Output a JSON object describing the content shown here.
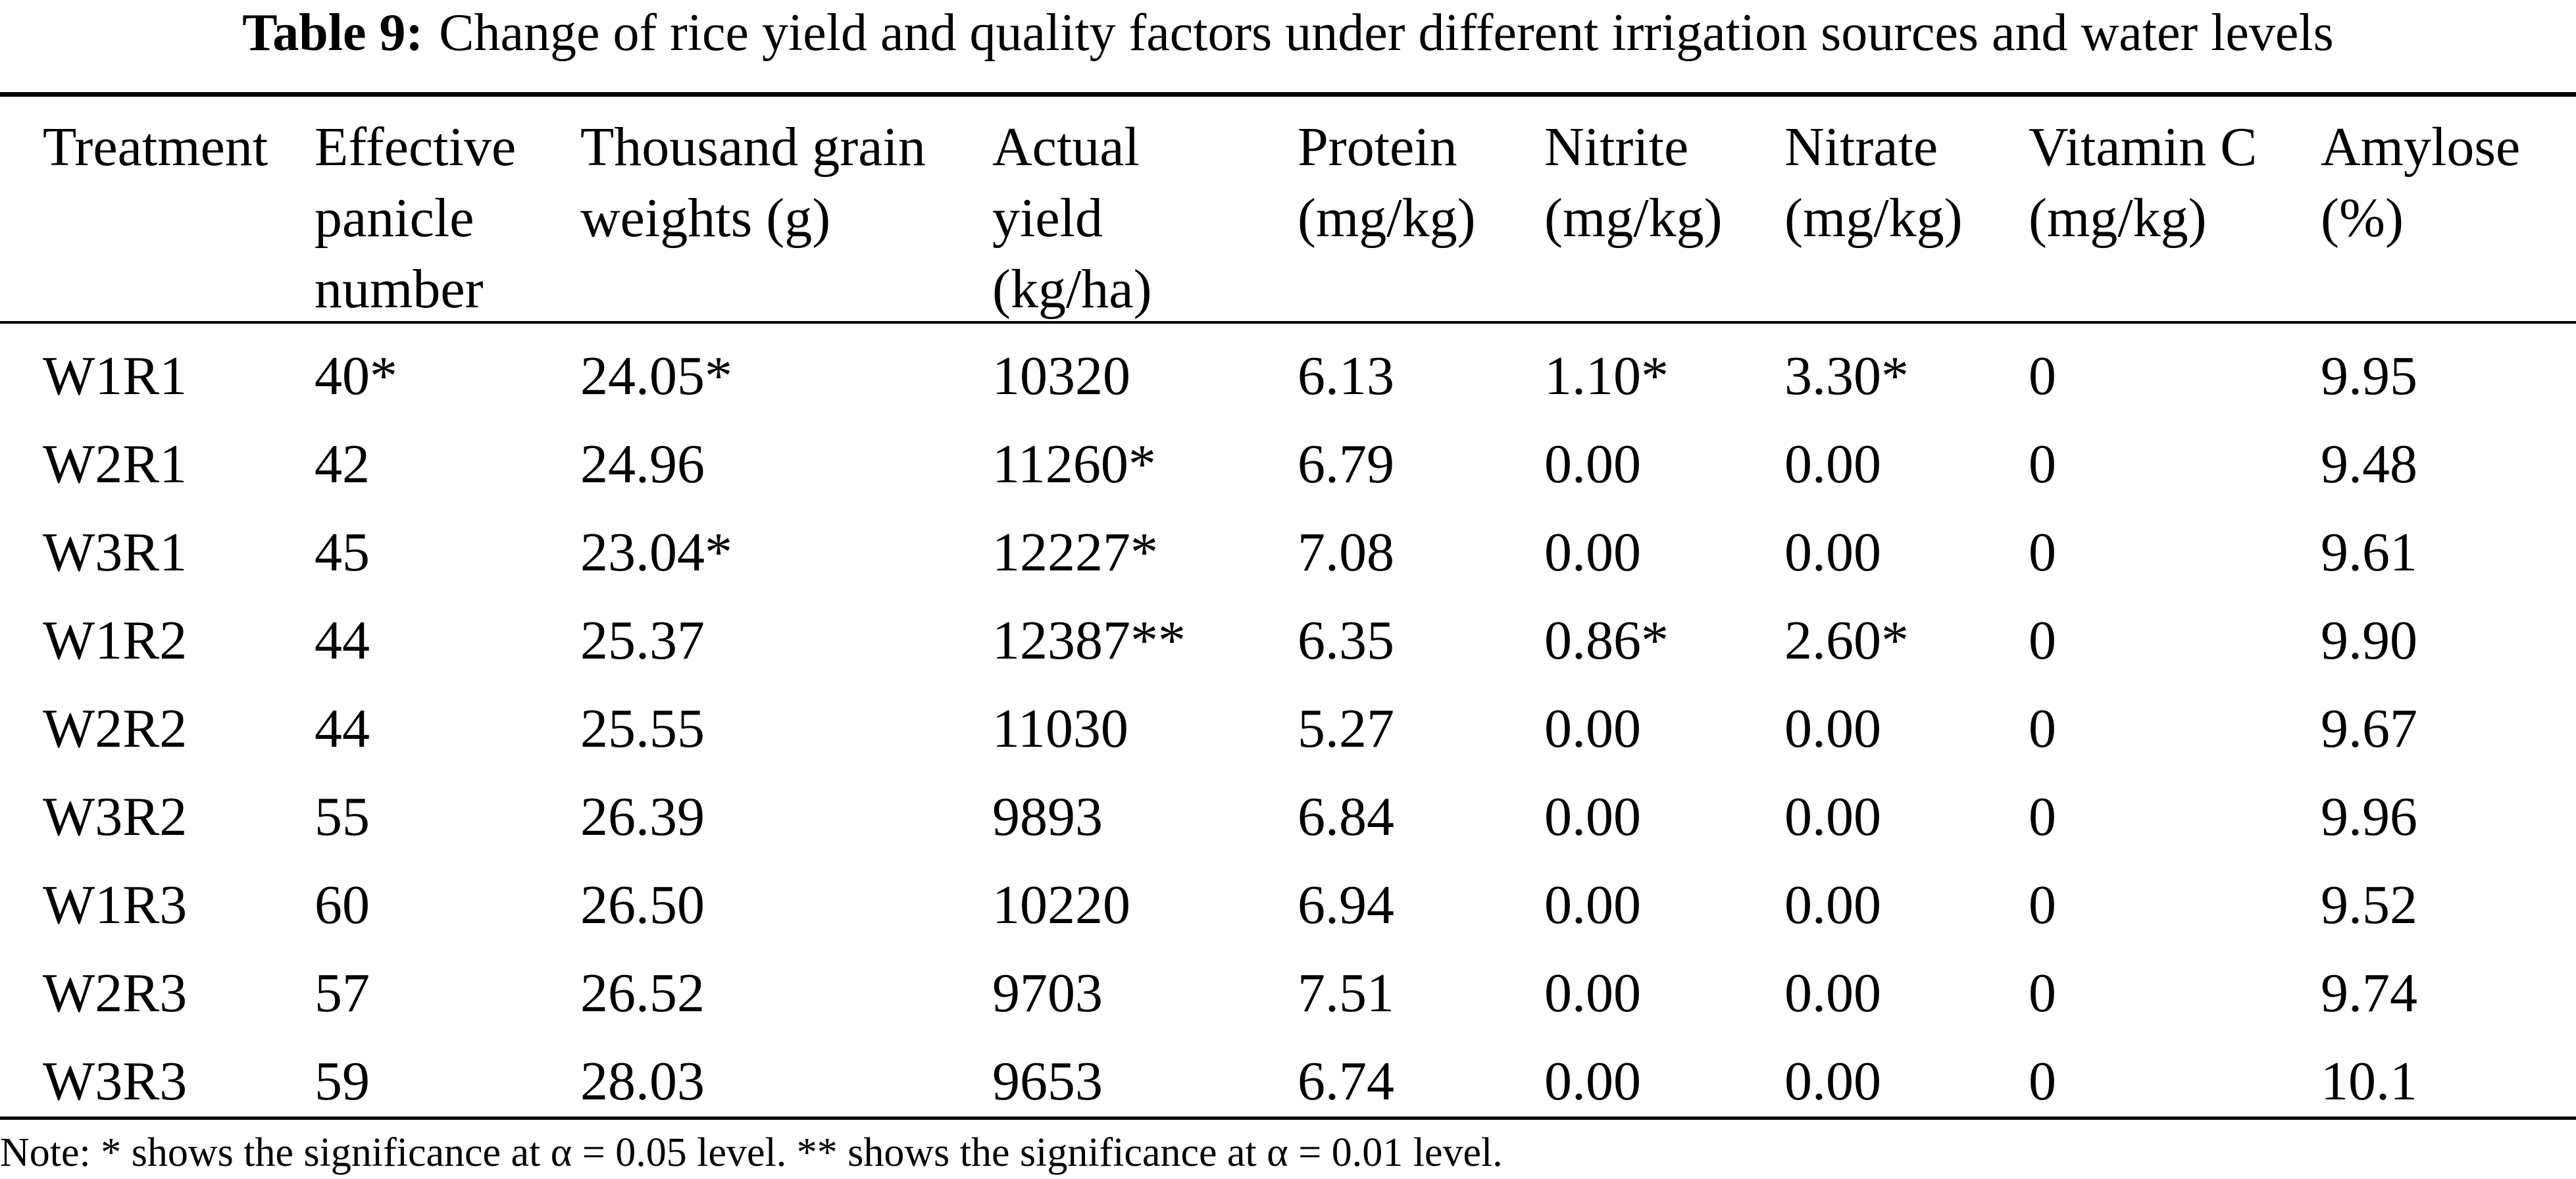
{
  "caption": {
    "label": "Table 9:",
    "text": "Change of rice yield and quality factors under different irrigation sources and water levels"
  },
  "table": {
    "headers": [
      "Treatment",
      "Effective\npanicle\nnumber",
      "Thousand grain\nweights (g)",
      "Actual\nyield\n(kg/ha)",
      "Protein\n(mg/kg)",
      "Nitrite\n(mg/kg)",
      "Nitrate\n(mg/kg)",
      "Vitamin C\n(mg/kg)",
      "Amylose\n(%)"
    ],
    "rows": [
      [
        "W1R1",
        "40*",
        "24.05*",
        "10320",
        "6.13",
        "1.10*",
        "3.30*",
        "0",
        "9.95"
      ],
      [
        "W2R1",
        "42",
        "24.96",
        "11260*",
        "6.79",
        "0.00",
        "0.00",
        "0",
        "9.48"
      ],
      [
        "W3R1",
        "45",
        "23.04*",
        "12227*",
        "7.08",
        "0.00",
        "0.00",
        "0",
        "9.61"
      ],
      [
        "W1R2",
        "44",
        "25.37",
        "12387**",
        "6.35",
        "0.86*",
        "2.60*",
        "0",
        "9.90"
      ],
      [
        "W2R2",
        "44",
        "25.55",
        "11030",
        "5.27",
        "0.00",
        "0.00",
        "0",
        "9.67"
      ],
      [
        "W3R2",
        "55",
        "26.39",
        "9893",
        "6.84",
        "0.00",
        "0.00",
        "0",
        "9.96"
      ],
      [
        "W1R3",
        "60",
        "26.50",
        "10220",
        "6.94",
        "0.00",
        "0.00",
        "0",
        "9.52"
      ],
      [
        "W2R3",
        "57",
        "26.52",
        "9703",
        "7.51",
        "0.00",
        "0.00",
        "0",
        "9.74"
      ],
      [
        "W3R3",
        "59",
        "28.03",
        "9653",
        "6.74",
        "0.00",
        "0.00",
        "0",
        "10.1"
      ]
    ]
  },
  "note": "Note: * shows the significance at α = 0.05 level. ** shows the significance at α = 0.01 level."
}
